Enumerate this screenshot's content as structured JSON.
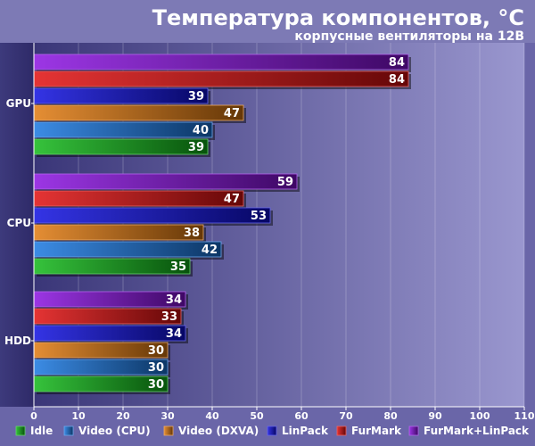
{
  "chart_data": {
    "type": "bar",
    "orientation": "horizontal",
    "title": "Температура компонентов, °C",
    "subtitle": "корпусные вентиляторы на 12В",
    "categories": [
      "GPU",
      "CPU",
      "HDD"
    ],
    "x_ticks": [
      "0",
      "10",
      "20",
      "30",
      "40",
      "50",
      "60",
      "70",
      "80",
      "90",
      "100",
      "110"
    ],
    "xlim": [
      0,
      110
    ],
    "grid": true,
    "legend_position": "bottom",
    "series": [
      {
        "name": "Idle",
        "color": "#12b81a",
        "values": [
          39,
          35,
          30
        ]
      },
      {
        "name": "Video (CPU)",
        "color": "#1a78e0",
        "values": [
          40,
          42,
          30
        ]
      },
      {
        "name": "Video (DXVA)",
        "color": "#e07a10",
        "values": [
          47,
          38,
          30
        ]
      },
      {
        "name": "LinPack",
        "color": "#1010e0",
        "values": [
          39,
          53,
          34
        ]
      },
      {
        "name": "FurMark",
        "color": "#e01010",
        "values": [
          84,
          47,
          33
        ]
      },
      {
        "name": "FurMark+LinPack",
        "color": "#8a12e0",
        "values": [
          84,
          59,
          34
        ]
      }
    ],
    "colors": {
      "background": "#6a66a8",
      "title_band": "#7a77b2",
      "plot_left": "#3a3678",
      "plot_right": "#9a97cf",
      "text": "#ffffff"
    }
  }
}
